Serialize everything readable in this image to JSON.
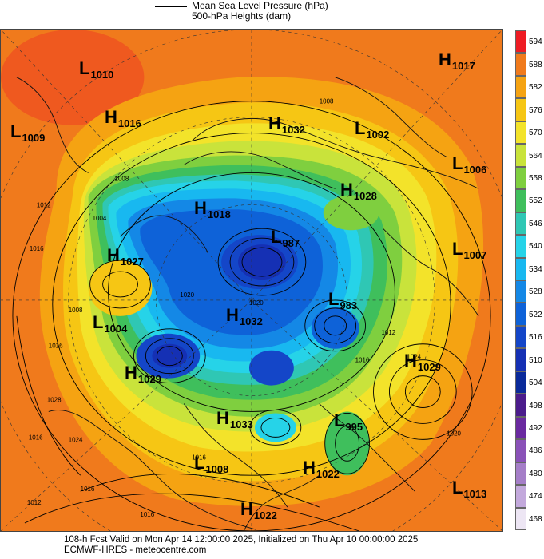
{
  "legend": {
    "line1": "Mean Sea Level Pressure (hPa)",
    "line2": "500-hPa Heights (dam)"
  },
  "colorbar": {
    "levels": [
      "594",
      "588",
      "582",
      "576",
      "570",
      "564",
      "558",
      "552",
      "546",
      "540",
      "534",
      "528",
      "522",
      "516",
      "510",
      "504",
      "498",
      "492",
      "486",
      "480",
      "474",
      "468"
    ],
    "colors": [
      "#ee1c24",
      "#f07a1c",
      "#f5a312",
      "#f6c614",
      "#f3e32a",
      "#c9e33b",
      "#7fcf3f",
      "#3fbf5c",
      "#2fc7b4",
      "#26d3e8",
      "#18b8f0",
      "#1488e6",
      "#0e62d8",
      "#1446c8",
      "#1530b4",
      "#0a2a9a",
      "#4b1c8c",
      "#6a2aa0",
      "#8a52b8",
      "#a57ec8",
      "#c3a9dc",
      "#ede6f4"
    ]
  },
  "pressure_systems": [
    {
      "type": "H",
      "value": "1017"
    },
    {
      "type": "L",
      "value": "1010"
    },
    {
      "type": "H",
      "value": "1016"
    },
    {
      "type": "L",
      "value": "1009"
    },
    {
      "type": "H",
      "value": "1032"
    },
    {
      "type": "L",
      "value": "1002"
    },
    {
      "type": "L",
      "value": "1006"
    },
    {
      "type": "H",
      "value": "1028"
    },
    {
      "type": "H",
      "value": "1018"
    },
    {
      "type": "L",
      "value": "987"
    },
    {
      "type": "H",
      "value": "1027"
    },
    {
      "type": "L",
      "value": "1007"
    },
    {
      "type": "L",
      "value": "983"
    },
    {
      "type": "H",
      "value": "1032"
    },
    {
      "type": "L",
      "value": "1004"
    },
    {
      "type": "H",
      "value": "1029"
    },
    {
      "type": "H",
      "value": "1029"
    },
    {
      "type": "H",
      "value": "1033"
    },
    {
      "type": "L",
      "value": "995"
    },
    {
      "type": "L",
      "value": "1008"
    },
    {
      "type": "H",
      "value": "1022"
    },
    {
      "type": "L",
      "value": "1013"
    },
    {
      "type": "H",
      "value": "1022"
    }
  ],
  "isobar_labels": [
    "1008",
    "1008",
    "1004",
    "1012",
    "1016",
    "1008",
    "1016",
    "1020",
    "1020",
    "1012",
    "1016",
    "1024",
    "1020",
    "1028",
    "1016",
    "1024",
    "1016",
    "1012",
    "1016",
    "1016"
  ],
  "footer": {
    "line1": "108-h Fcst Valid on Mon Apr 14 12:00:00 2025, Initialized on Thu Apr 10 00:00:00 2025",
    "line2": "ECMWF-HRES  - meteocentre.com"
  }
}
